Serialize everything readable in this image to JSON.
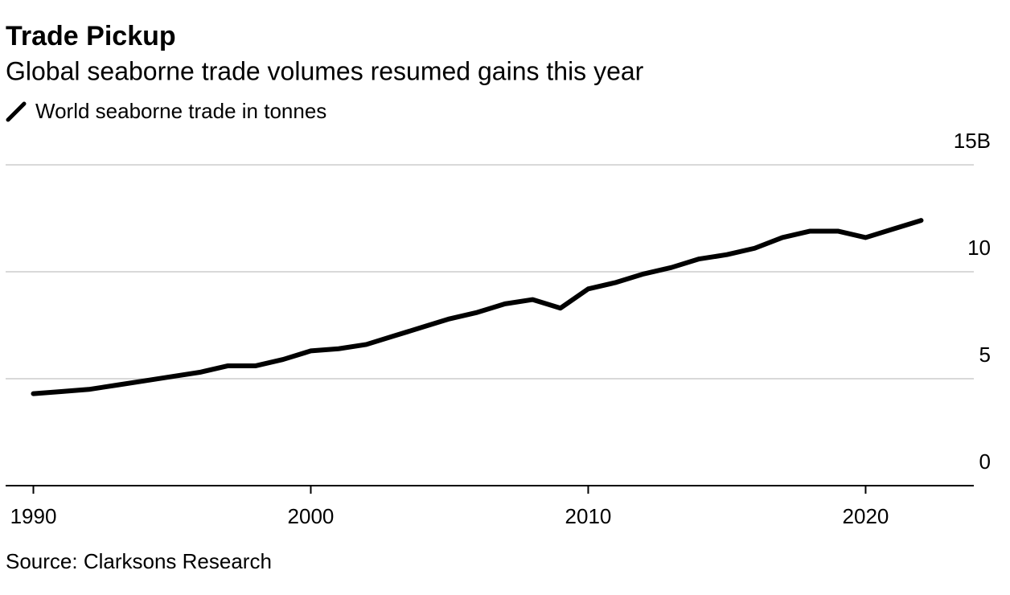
{
  "chart_data": {
    "type": "line",
    "title": "Trade Pickup",
    "subtitle": "Global seaborne trade volumes resumed gains this year",
    "source": "Source: Clarksons Research",
    "x": [
      1990,
      1991,
      1992,
      1993,
      1994,
      1995,
      1996,
      1997,
      1998,
      1999,
      2000,
      2001,
      2002,
      2003,
      2004,
      2005,
      2006,
      2007,
      2008,
      2009,
      2010,
      2011,
      2012,
      2013,
      2014,
      2015,
      2016,
      2017,
      2018,
      2019,
      2020,
      2021,
      2022
    ],
    "series": [
      {
        "name": "World seaborne trade in tonnes",
        "color": "#000000",
        "values": [
          4.3,
          4.4,
          4.5,
          4.7,
          4.9,
          5.1,
          5.3,
          5.6,
          5.6,
          5.9,
          6.3,
          6.4,
          6.6,
          7.0,
          7.4,
          7.8,
          8.1,
          8.5,
          8.7,
          8.3,
          9.2,
          9.5,
          9.9,
          10.2,
          10.6,
          10.8,
          11.1,
          11.6,
          11.9,
          11.9,
          11.6,
          12.0,
          12.4
        ]
      }
    ],
    "xlim": [
      1989,
      2023.9
    ],
    "xticks": [
      1990,
      2000,
      2010,
      2020
    ],
    "ylim": [
      0,
      15
    ],
    "yticks": [
      0,
      5,
      10,
      {
        "value": 15,
        "label": "15B"
      }
    ],
    "grid": true
  }
}
